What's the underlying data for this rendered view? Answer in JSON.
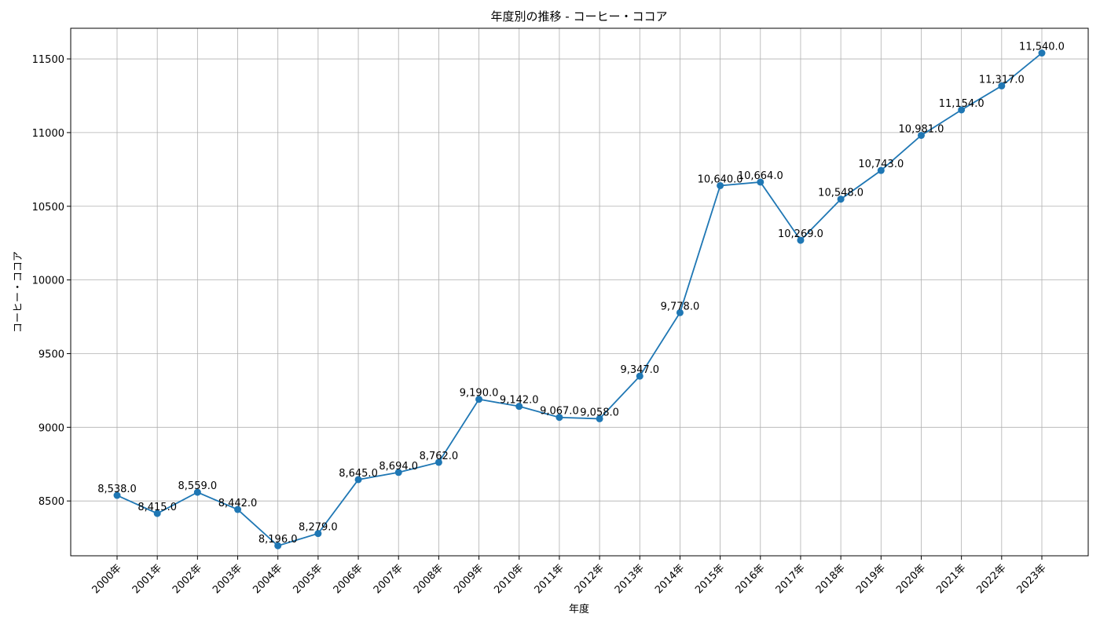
{
  "chart_data": {
    "type": "line",
    "title": "年度別の推移 - コーヒー・ココア",
    "xlabel": "年度",
    "ylabel": "コーヒー・ココア",
    "categories": [
      "2000年",
      "2001年",
      "2002年",
      "2003年",
      "2004年",
      "2005年",
      "2006年",
      "2007年",
      "2008年",
      "2009年",
      "2010年",
      "2011年",
      "2012年",
      "2013年",
      "2014年",
      "2015年",
      "2016年",
      "2017年",
      "2018年",
      "2019年",
      "2020年",
      "2021年",
      "2022年",
      "2023年"
    ],
    "values": [
      8538,
      8415,
      8559,
      8442,
      8196,
      8279,
      8645,
      8694,
      8762,
      9190,
      9142,
      9067,
      9058,
      9347,
      9778,
      10640,
      10664,
      10269,
      10548,
      10743,
      10981,
      11154,
      11317,
      11540
    ],
    "data_labels": [
      "8,538.0",
      "8,415.0",
      "8,559.0",
      "8,442.0",
      "8,196.0",
      "8,279.0",
      "8,645.0",
      "8,694.0",
      "8,762.0",
      "9,190.0",
      "9,142.0",
      "9,067.0",
      "9,058.0",
      "9,347.0",
      "9,778.0",
      "10,640.0",
      "10,664.0",
      "10,269.0",
      "10,548.0",
      "10,743.0",
      "10,981.0",
      "11,154.0",
      "11,317.0",
      "11,540.0"
    ],
    "yticks": [
      8500,
      9000,
      9500,
      10000,
      10500,
      11000,
      11500
    ],
    "ylim": [
      8128,
      11708
    ],
    "grid": true,
    "marker": "circle",
    "color": "#1f77b4"
  }
}
